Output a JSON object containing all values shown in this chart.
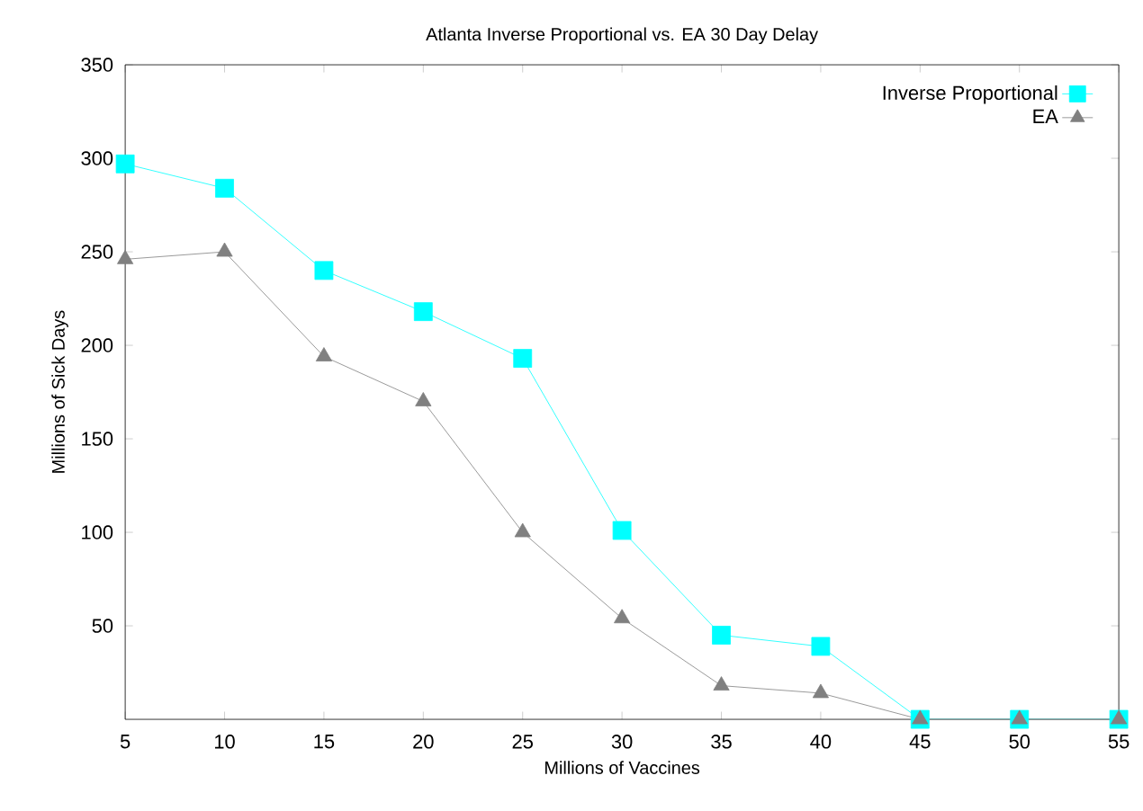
{
  "chart_data": {
    "type": "line",
    "title": "Atlanta Inverse Proportional vs. EA 30 Day Delay",
    "xlabel": "Millions of Vaccines",
    "ylabel": "Millions of Sick Days",
    "x": [
      5,
      10,
      15,
      20,
      25,
      30,
      35,
      40,
      45,
      50,
      55
    ],
    "series": [
      {
        "name": "Inverse Proportional",
        "color": "#00ffff",
        "marker": "square",
        "values": [
          297,
          284,
          240,
          218,
          193,
          101,
          45,
          39,
          0,
          0,
          0
        ]
      },
      {
        "name": "EA",
        "color": "#808080",
        "marker": "triangle",
        "values": [
          246,
          250,
          194,
          170,
          100,
          54,
          18,
          14,
          0,
          0,
          0
        ]
      }
    ],
    "xlim": [
      5,
      55
    ],
    "xticks": [
      5,
      10,
      15,
      20,
      25,
      30,
      35,
      40,
      45,
      50,
      55
    ],
    "ylim": [
      0,
      350
    ],
    "yticks": [
      50,
      100,
      150,
      200,
      250,
      300,
      350
    ],
    "grid": false,
    "legend": "top right"
  }
}
